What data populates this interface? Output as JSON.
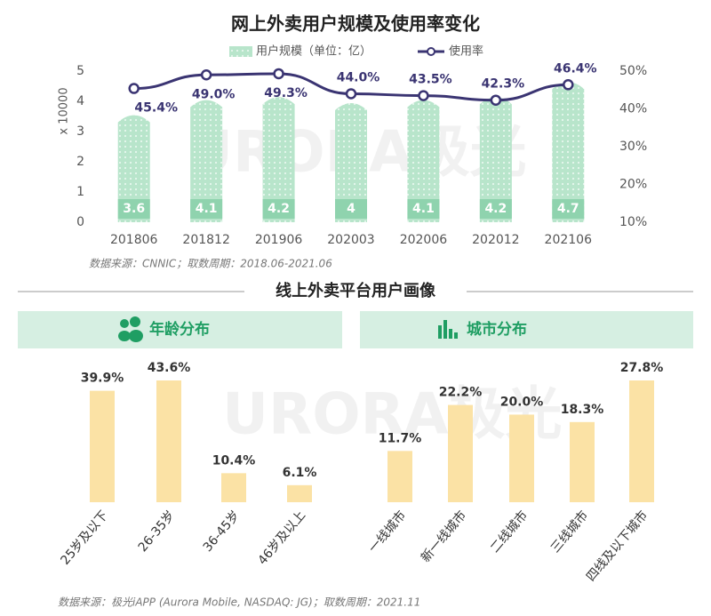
{
  "watermark": "URORA极光",
  "section_title": "线上外卖平台用户画像",
  "source": "数据来源：极光iAPP (Aurora Mobile, NASDAQ: JG)；取数周期：2021.11",
  "chart_data": [
    {
      "type": "bar-line",
      "title": "网上外卖用户规模及使用率变化",
      "y_label": "x 10000",
      "source": "数据来源：CNNIC；取数周期：2018.06-2021.06",
      "categories": [
        "201806",
        "201812",
        "201906",
        "202003",
        "202006",
        "202012",
        "202106"
      ],
      "ylim": [
        0,
        5
      ],
      "yticks": [
        0,
        1,
        2,
        3,
        4,
        5
      ],
      "y2lim": [
        10,
        50
      ],
      "y2ticks": [
        {
          "value": 10,
          "label": "10%"
        },
        {
          "value": 20,
          "label": "20%"
        },
        {
          "value": 30,
          "label": "30%"
        },
        {
          "value": 40,
          "label": "40%"
        },
        {
          "value": 50,
          "label": "50%"
        }
      ],
      "series": [
        {
          "name": "用户规模（单位：亿）",
          "color": "#b8e5cb",
          "values": [
            3.6,
            4.1,
            4.2,
            4.0,
            4.1,
            4.2,
            4.7
          ]
        },
        {
          "name": "使用率",
          "color": "#3a3472",
          "axis": "y2",
          "values": [
            45.4,
            49.0,
            49.3,
            44.0,
            43.5,
            42.3,
            46.4
          ],
          "value_labels": [
            "45.4%",
            "49.0%",
            "49.3%",
            "44.0%",
            "43.5%",
            "42.3%",
            "46.4%"
          ]
        }
      ]
    },
    {
      "type": "bar",
      "title": "年龄分布",
      "color": "#fbe2a5",
      "categories": [
        "25岁及以下",
        "26-35岁",
        "36-45岁",
        "46岁及以上"
      ],
      "values": [
        39.9,
        43.6,
        10.4,
        6.1
      ],
      "value_labels": [
        "39.9%",
        "43.6%",
        "10.4%",
        "6.1%"
      ]
    },
    {
      "type": "bar",
      "title": "城市分布",
      "color": "#fbe2a5",
      "categories": [
        "一线城市",
        "新一线城市",
        "二线城市",
        "三线城市",
        "四线及以下城市"
      ],
      "values": [
        11.7,
        22.2,
        20.0,
        18.3,
        27.8
      ],
      "value_labels": [
        "11.7%",
        "22.2%",
        "20.0%",
        "18.3%",
        "27.8%"
      ]
    }
  ]
}
